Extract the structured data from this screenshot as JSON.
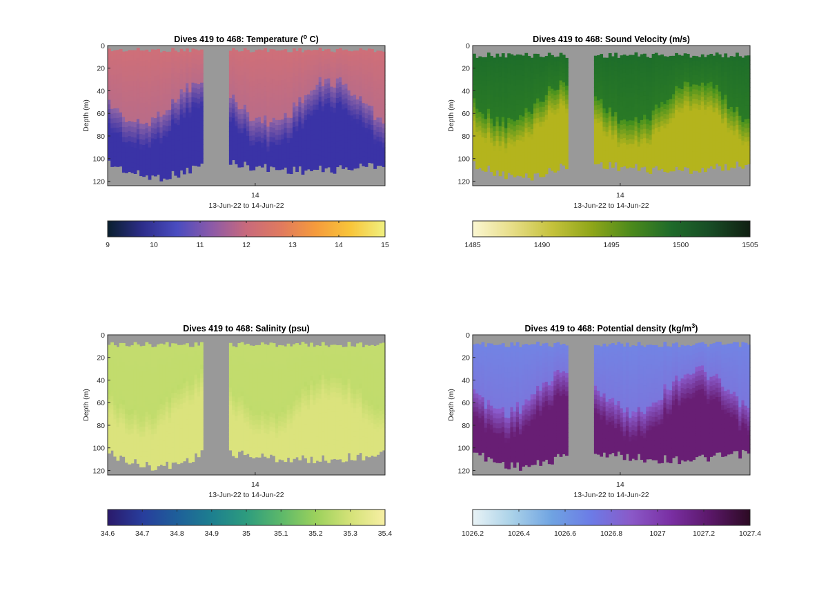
{
  "chart_data": [
    {
      "type": "heatmap",
      "title": "Dives 419 to 468: Temperature (",
      "title_sup": "o",
      "title_suffix": " C)",
      "ylabel": "Depth (m)",
      "xlabel": "13-Jun-22 to 14-Jun-22",
      "x_ticks": [
        "14"
      ],
      "y_ticks": [
        "0",
        "20",
        "40",
        "60",
        "80",
        "100",
        "120"
      ],
      "ylim": [
        0,
        124
      ],
      "dives": [
        419,
        468
      ],
      "colorbar": {
        "ticks": [
          "9",
          "10",
          "11",
          "12",
          "13",
          "14",
          "15"
        ],
        "range": [
          9,
          15
        ],
        "colors": [
          "#0a1f2e",
          "#2d2d8a",
          "#4a4cc0",
          "#8c5aa8",
          "#c86a7c",
          "#e07a5f",
          "#f59b3c",
          "#f8c53a",
          "#f0f080"
        ]
      },
      "profile": {
        "surface": "#cf6f78",
        "mid": "#9065a6",
        "deep": "#3a33a6"
      },
      "mask": "surface-ticks"
    },
    {
      "type": "heatmap",
      "title": "Dives 419 to 468: Sound Velocity (m/s)",
      "ylabel": "Depth (m)",
      "xlabel": "13-Jun-22 to 14-Jun-22",
      "x_ticks": [
        "14"
      ],
      "y_ticks": [
        "0",
        "20",
        "40",
        "60",
        "80",
        "100",
        "120"
      ],
      "ylim": [
        0,
        124
      ],
      "dives": [
        419,
        468
      ],
      "colorbar": {
        "ticks": [
          "1485",
          "1490",
          "1495",
          "1500",
          "1505"
        ],
        "range": [
          1485,
          1505
        ],
        "colors": [
          "#fbf7d2",
          "#e7dd87",
          "#c5c23c",
          "#8fa619",
          "#4c8a1c",
          "#1f6b2a",
          "#184c25",
          "#101f12"
        ]
      },
      "profile": {
        "surface": "#1e6e2a",
        "mid": "#3f8f1e",
        "deep": "#b4b41d"
      },
      "mask": "top-gap"
    },
    {
      "type": "heatmap",
      "title": "Dives 419 to 468: Salinity (psu)",
      "ylabel": "Depth (m)",
      "xlabel": "13-Jun-22 to 14-Jun-22",
      "x_ticks": [
        "14"
      ],
      "y_ticks": [
        "0",
        "20",
        "40",
        "60",
        "80",
        "100",
        "120"
      ],
      "ylim": [
        0,
        124
      ],
      "dives": [
        419,
        468
      ],
      "colorbar": {
        "ticks": [
          "34.6",
          "34.7",
          "34.8",
          "34.9",
          "35",
          "35.1",
          "35.2",
          "35.3",
          "35.4"
        ],
        "range": [
          34.6,
          35.4
        ],
        "colors": [
          "#2a1a6b",
          "#283d9c",
          "#1e5f9a",
          "#1d7f8f",
          "#2d9c7e",
          "#5cb86a",
          "#9bd15c",
          "#d4e278",
          "#f7efa4"
        ]
      },
      "profile": {
        "surface": "#c3dc6e",
        "mid": "#bedb6a",
        "deep": "#dbe37d"
      },
      "mask": "top-gap"
    },
    {
      "type": "heatmap",
      "title": "Dives 419 to 468: Potential density (kg/m",
      "title_sup": "3",
      "title_suffix": ")",
      "ylabel": "Depth (m)",
      "xlabel": "13-Jun-22 to 14-Jun-22",
      "x_ticks": [
        "14"
      ],
      "y_ticks": [
        "0",
        "20",
        "40",
        "60",
        "80",
        "100",
        "120"
      ],
      "ylim": [
        0,
        124
      ],
      "dives": [
        419,
        468
      ],
      "colorbar": {
        "ticks": [
          "1026.2",
          "1026.4",
          "1026.6",
          "1026.8",
          "1027",
          "1027.2",
          "1027.4"
        ],
        "range": [
          1026.2,
          1027.4
        ],
        "colors": [
          "#e9f3f6",
          "#a9d1e8",
          "#6fa3e2",
          "#6c7be6",
          "#8a59c8",
          "#7a2fa3",
          "#5a1768",
          "#2c0a23"
        ]
      },
      "profile": {
        "surface": "#7284e4",
        "mid": "#8a5ccd",
        "deep": "#681e74"
      },
      "mask": "top-gap"
    }
  ]
}
